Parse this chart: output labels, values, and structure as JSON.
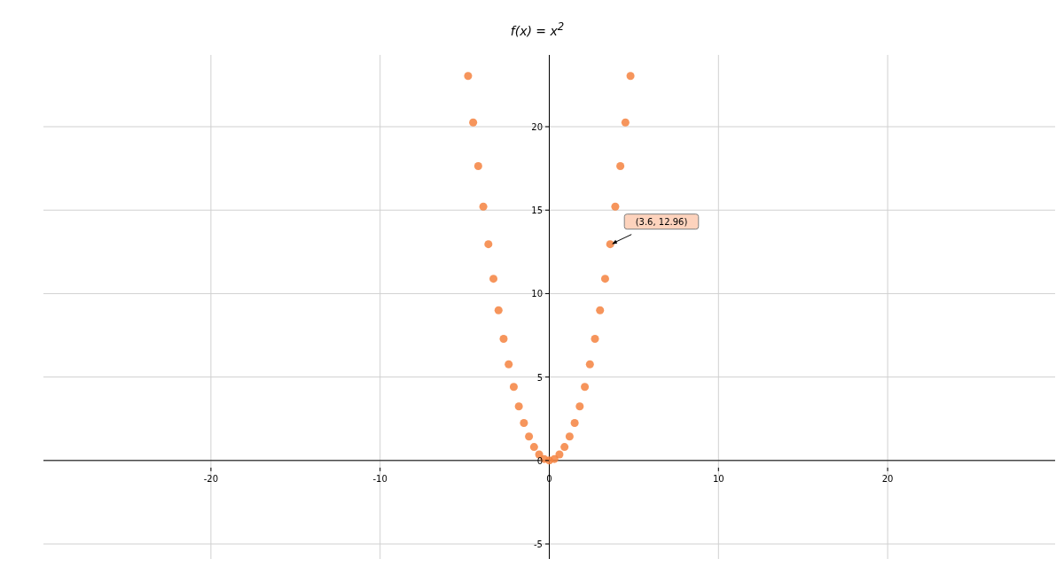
{
  "chart_data": {
    "type": "scatter",
    "title": "f(x) = x$^{2}$",
    "x": [
      -4.8,
      -4.5,
      -4.2,
      -3.9,
      -3.6,
      -3.3,
      -3.0,
      -2.7,
      -2.4,
      -2.1,
      -1.8,
      -1.5,
      -1.2,
      -0.9,
      -0.6,
      -0.3,
      0,
      0.3,
      0.6,
      0.9,
      1.2,
      1.5,
      1.8,
      2.1,
      2.4,
      2.7,
      3.0,
      3.3,
      3.6,
      3.9,
      4.2,
      4.5,
      4.8
    ],
    "values": [
      23.04,
      20.25,
      17.64,
      15.21,
      12.96,
      10.89,
      9,
      7.29,
      5.76,
      4.41,
      3.24,
      2.25,
      1.44,
      0.81,
      0.36,
      0.09,
      0,
      0.09,
      0.36,
      0.81,
      1.44,
      2.25,
      3.24,
      4.41,
      5.76,
      7.29,
      9,
      10.89,
      12.96,
      15.21,
      17.64,
      20.25,
      23.04
    ],
    "color": "#f4823f",
    "marker": "circle",
    "grid": true,
    "xlim": [
      -29.9,
      29.9
    ],
    "ylim": [
      -5.9,
      24.3
    ],
    "xticks": [
      -20,
      -10,
      0,
      10,
      20
    ],
    "yticks": [
      -5,
      0,
      5,
      10,
      15,
      20
    ],
    "annotations": [
      {
        "text": "(3.6, 12.96)",
        "x": 3.6,
        "y": 12.96
      }
    ]
  }
}
